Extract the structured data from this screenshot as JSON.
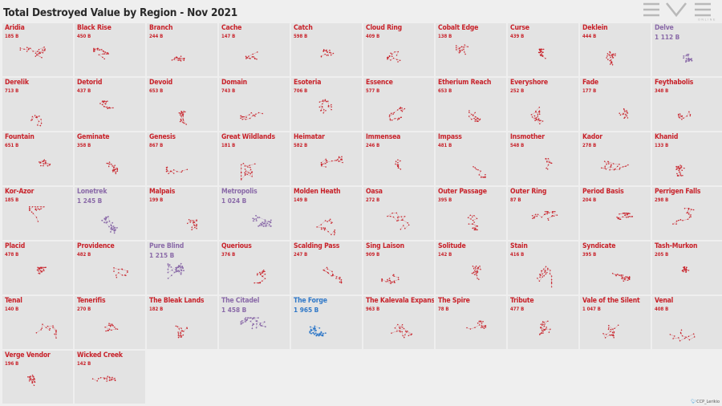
{
  "title": "Total Destroyed Value by Region - Nov 2021",
  "logo": {
    "top_text": "EVE",
    "sub_text": "ONLINE"
  },
  "credit": {
    "bird_icon": "twitter-bird-icon",
    "text": "CCP_Lerikio"
  },
  "colors": {
    "red": "#c8222a",
    "purple": "#8a6aa8",
    "blue": "#2f78c8",
    "cell_bg": "#e3e3e3",
    "page_bg": "#efefef"
  },
  "regions": [
    {
      "name": "Aridia",
      "value": "185 B",
      "color": "red"
    },
    {
      "name": "Black Rise",
      "value": "450 B",
      "color": "red"
    },
    {
      "name": "Branch",
      "value": "244 B",
      "color": "red"
    },
    {
      "name": "Cache",
      "value": "147 B",
      "color": "red"
    },
    {
      "name": "Catch",
      "value": "598 B",
      "color": "red"
    },
    {
      "name": "Cloud Ring",
      "value": "409 B",
      "color": "red"
    },
    {
      "name": "Cobalt Edge",
      "value": "138 B",
      "color": "red"
    },
    {
      "name": "Curse",
      "value": "439 B",
      "color": "red"
    },
    {
      "name": "Deklein",
      "value": "444 B",
      "color": "red"
    },
    {
      "name": "Delve",
      "value": "1 112 B",
      "color": "purple"
    },
    {
      "name": "Derelik",
      "value": "713 B",
      "color": "red"
    },
    {
      "name": "Detorid",
      "value": "437 B",
      "color": "red"
    },
    {
      "name": "Devoid",
      "value": "653 B",
      "color": "red"
    },
    {
      "name": "Domain",
      "value": "743 B",
      "color": "red"
    },
    {
      "name": "Esoteria",
      "value": "706 B",
      "color": "red"
    },
    {
      "name": "Essence",
      "value": "577 B",
      "color": "red"
    },
    {
      "name": "Etherium Reach",
      "value": "653 B",
      "color": "red"
    },
    {
      "name": "Everyshore",
      "value": "252 B",
      "color": "red"
    },
    {
      "name": "Fade",
      "value": "177 B",
      "color": "red"
    },
    {
      "name": "Feythabolis",
      "value": "348 B",
      "color": "red"
    },
    {
      "name": "Fountain",
      "value": "651 B",
      "color": "red"
    },
    {
      "name": "Geminate",
      "value": "358 B",
      "color": "red"
    },
    {
      "name": "Genesis",
      "value": "867 B",
      "color": "red"
    },
    {
      "name": "Great Wildlands",
      "value": "181 B",
      "color": "red"
    },
    {
      "name": "Heimatar",
      "value": "582 B",
      "color": "red"
    },
    {
      "name": "Immensea",
      "value": "246 B",
      "color": "red"
    },
    {
      "name": "Impass",
      "value": "481 B",
      "color": "red"
    },
    {
      "name": "Insmother",
      "value": "548 B",
      "color": "red"
    },
    {
      "name": "Kador",
      "value": "278 B",
      "color": "red"
    },
    {
      "name": "Khanid",
      "value": "133 B",
      "color": "red"
    },
    {
      "name": "Kor-Azor",
      "value": "185 B",
      "color": "red"
    },
    {
      "name": "Lonetrek",
      "value": "1 245 B",
      "color": "purple"
    },
    {
      "name": "Malpais",
      "value": "199 B",
      "color": "red"
    },
    {
      "name": "Metropolis",
      "value": "1 024 B",
      "color": "purple"
    },
    {
      "name": "Molden Heath",
      "value": "149 B",
      "color": "red"
    },
    {
      "name": "Oasa",
      "value": "272 B",
      "color": "red"
    },
    {
      "name": "Outer Passage",
      "value": "395 B",
      "color": "red"
    },
    {
      "name": "Outer Ring",
      "value": "87 B",
      "color": "red"
    },
    {
      "name": "Period Basis",
      "value": "204 B",
      "color": "red"
    },
    {
      "name": "Perrigen Falls",
      "value": "298 B",
      "color": "red"
    },
    {
      "name": "Placid",
      "value": "478 B",
      "color": "red"
    },
    {
      "name": "Providence",
      "value": "482 B",
      "color": "red"
    },
    {
      "name": "Pure Blind",
      "value": "1 215 B",
      "color": "purple"
    },
    {
      "name": "Querious",
      "value": "376 B",
      "color": "red"
    },
    {
      "name": "Scalding Pass",
      "value": "247 B",
      "color": "red"
    },
    {
      "name": "Sing Laison",
      "value": "909 B",
      "color": "red"
    },
    {
      "name": "Solitude",
      "value": "142 B",
      "color": "red"
    },
    {
      "name": "Stain",
      "value": "416 B",
      "color": "red"
    },
    {
      "name": "Syndicate",
      "value": "395 B",
      "color": "red"
    },
    {
      "name": "Tash-Murkon",
      "value": "205 B",
      "color": "red"
    },
    {
      "name": "Tenal",
      "value": "140 B",
      "color": "red"
    },
    {
      "name": "Tenerifis",
      "value": "270 B",
      "color": "red"
    },
    {
      "name": "The Bleak Lands",
      "value": "182 B",
      "color": "red"
    },
    {
      "name": "The Citadel",
      "value": "1 458 B",
      "color": "purple"
    },
    {
      "name": "The Forge",
      "value": "1 965 B",
      "color": "blue"
    },
    {
      "name": "The Kalevala Expanse",
      "value": "963 B",
      "color": "red"
    },
    {
      "name": "The Spire",
      "value": "78 B",
      "color": "red"
    },
    {
      "name": "Tribute",
      "value": "477 B",
      "color": "red"
    },
    {
      "name": "Vale of the Silent",
      "value": "1 047 B",
      "color": "red"
    },
    {
      "name": "Venal",
      "value": "408 B",
      "color": "red"
    },
    {
      "name": "Verge Vendor",
      "value": "196 B",
      "color": "red"
    },
    {
      "name": "Wicked Creek",
      "value": "142 B",
      "color": "red"
    }
  ]
}
